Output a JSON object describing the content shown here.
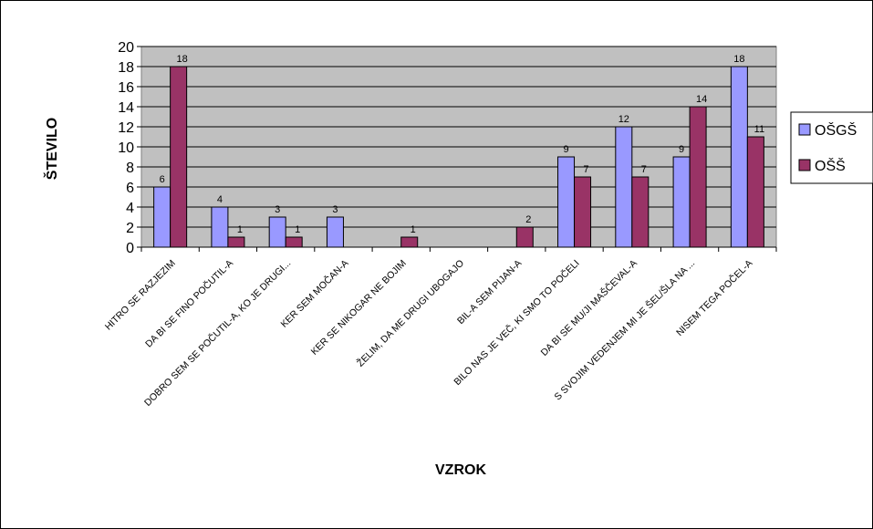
{
  "chart_data": {
    "type": "bar",
    "title": "",
    "xlabel": "VZROK",
    "ylabel": "ŠTEVILO",
    "ylim": [
      0,
      20
    ],
    "yticks": [
      0,
      2,
      4,
      6,
      8,
      10,
      12,
      14,
      16,
      18,
      20
    ],
    "grid": true,
    "legend_position": "right",
    "categories": [
      "HITRO SE RAZJEZIM",
      "DA BI SE FINO POČUTIL-A",
      "DOBRO SEM SE POČUTIL-A, KO JE DRUGI...",
      "KER SEM MOČAN-A",
      "KER SE NIKOGAR NE BOJIM",
      "ŽELIM, DA ME DRUGI UBOGAJO",
      "BIL-A SEM PIJAN-A",
      "BILO NAS JE VEČ, KI SMO TO POČELI",
      "DA BI SE MU/JI MAŠČEVAL-A",
      "S SVOJIM VEDENJEM MI JE ŠEL/ŠLA NA ...",
      "NISEM TEGA POČEL-A"
    ],
    "series": [
      {
        "name": "OŠGŠ",
        "color": "#9999ff",
        "values": [
          6,
          4,
          3,
          3,
          0,
          0,
          0,
          9,
          12,
          9,
          18
        ]
      },
      {
        "name": "OŠŠ",
        "color": "#993366",
        "values": [
          18,
          1,
          1,
          0,
          1,
          0,
          2,
          7,
          7,
          14,
          11
        ]
      }
    ],
    "plot_background": "#c0c0c0"
  }
}
